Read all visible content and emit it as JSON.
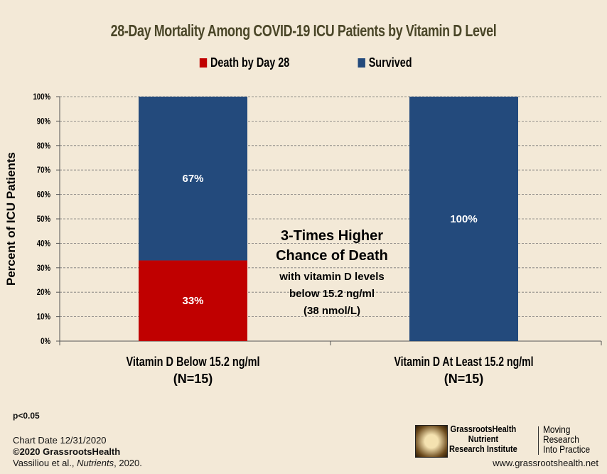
{
  "chart_data": {
    "type": "bar",
    "stacked": true,
    "title": "28-Day Mortality Among COVID-19 ICU Patients by Vitamin D Level",
    "ylabel": "Percent of ICU Patients",
    "ylim": [
      0,
      100
    ],
    "yticks": [
      "0%",
      "10%",
      "20%",
      "30%",
      "40%",
      "50%",
      "60%",
      "70%",
      "80%",
      "90%",
      "100%"
    ],
    "grid": true,
    "legend_position": "top",
    "categories": [
      [
        "Vitamin D Below 15.2 ng/ml",
        "(N=15)"
      ],
      [
        "Vitamin D At Least 15.2 ng/ml",
        "(N=15)"
      ]
    ],
    "series": [
      {
        "name": "Death by Day 28",
        "color": "#c00000",
        "values": [
          33,
          0
        ],
        "labels": [
          "33%",
          ""
        ]
      },
      {
        "name": "Survived",
        "color": "#234a7c",
        "values": [
          67,
          100
        ],
        "labels": [
          "67%",
          "100%"
        ]
      }
    ],
    "annotation": [
      "3-Times Higher",
      "Chance of Death",
      "with vitamin D levels",
      "below 15.2 ng/ml",
      "(38 nmol/L)"
    ]
  },
  "footer": {
    "pvalue": "p<0.05",
    "chart_date": "Chart Date 12/31/2020",
    "copyright": "©2020 GrassrootsHealth",
    "citation_authors": "Vassiliou et al., ",
    "citation_journal": "Nutrients",
    "citation_year": ", 2020.",
    "logo_text": [
      "GrassrootsHealth",
      "Nutrient",
      "Research Institute"
    ],
    "tagline": [
      "Moving",
      "Research",
      "Into Practice"
    ],
    "website": "www.grassrootshealth.net"
  },
  "colors": {
    "background": "#f3e9d7",
    "title": "#4a4628"
  }
}
